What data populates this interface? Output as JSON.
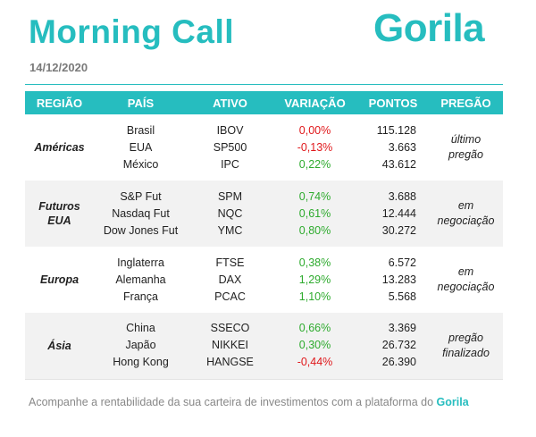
{
  "header": {
    "title": "Morning Call",
    "logo": "Gorila",
    "date": "14/12/2020"
  },
  "table": {
    "columns": [
      "REGIÃO",
      "PAÍS",
      "ATIVO",
      "VARIAÇÃO",
      "PONTOS",
      "PREGÃO"
    ],
    "groups": [
      {
        "region": "Américas",
        "status": "último pregão",
        "rows": [
          {
            "country": "Brasil",
            "asset": "IBOV",
            "variation": "0,00%",
            "points": "115.128",
            "tone": "zero"
          },
          {
            "country": "EUA",
            "asset": "SP500",
            "variation": "-0,13%",
            "points": "3.663",
            "tone": "neg"
          },
          {
            "country": "México",
            "asset": "IPC",
            "variation": "0,22%",
            "points": "43.612",
            "tone": "pos"
          }
        ]
      },
      {
        "region": "Futuros EUA",
        "status": "em negociação",
        "rows": [
          {
            "country": "S&P Fut",
            "asset": "SPM",
            "variation": "0,74%",
            "points": "3.688",
            "tone": "pos"
          },
          {
            "country": "Nasdaq Fut",
            "asset": "NQC",
            "variation": "0,61%",
            "points": "12.444",
            "tone": "pos"
          },
          {
            "country": "Dow Jones Fut",
            "asset": "YMC",
            "variation": "0,80%",
            "points": "30.272",
            "tone": "pos"
          }
        ]
      },
      {
        "region": "Europa",
        "status": "em negociação",
        "rows": [
          {
            "country": "Inglaterra",
            "asset": "FTSE",
            "variation": "0,38%",
            "points": "6.572",
            "tone": "pos"
          },
          {
            "country": "Alemanha",
            "asset": "DAX",
            "variation": "1,29%",
            "points": "13.283",
            "tone": "pos"
          },
          {
            "country": "França",
            "asset": "PCAC",
            "variation": "1,10%",
            "points": "5.568",
            "tone": "pos"
          }
        ]
      },
      {
        "region": "Ásia",
        "status": "pregão finalizado",
        "rows": [
          {
            "country": "China",
            "asset": "SSECO",
            "variation": "0,66%",
            "points": "3.369",
            "tone": "pos"
          },
          {
            "country": "Japão",
            "asset": "NIKKEI",
            "variation": "0,30%",
            "points": "26.732",
            "tone": "pos"
          },
          {
            "country": "Hong Kong",
            "asset": "HANGSE",
            "variation": "-0,44%",
            "points": "26.390",
            "tone": "neg"
          }
        ]
      }
    ]
  },
  "footer": {
    "text": "Acompanhe a rentabilidade da sua carteira de investimentos com a plataforma do",
    "brand": "Gorila"
  },
  "colors": {
    "accent": "#26bdbf",
    "positive": "#2eab2e",
    "negative": "#e0181b"
  }
}
